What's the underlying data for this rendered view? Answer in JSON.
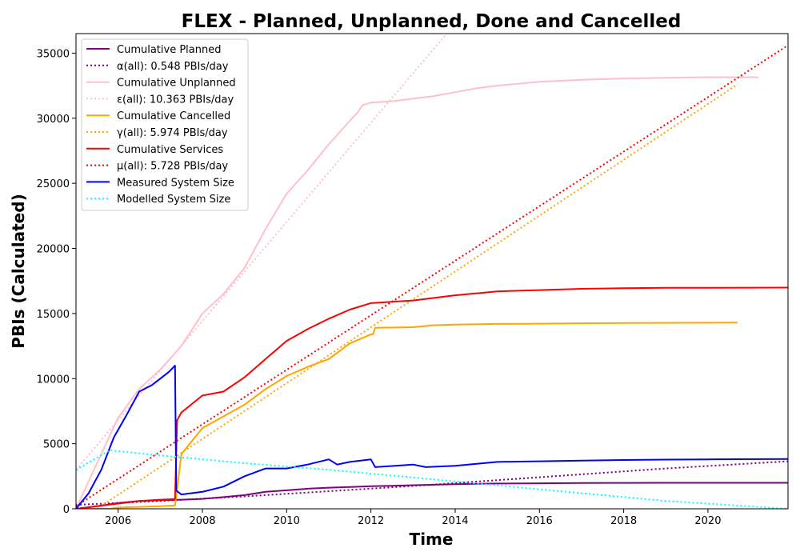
{
  "chart_data": {
    "type": "line",
    "title": "FLEX - Planned, Unplanned, Done  and Cancelled",
    "xlabel": "Time",
    "ylabel": "PBIs (Calculated)",
    "xlim": [
      2005.0,
      2021.9
    ],
    "ylim": [
      0,
      36500
    ],
    "x_ticks": [
      2006,
      2008,
      2010,
      2012,
      2014,
      2016,
      2018,
      2020
    ],
    "y_ticks": [
      0,
      5000,
      10000,
      15000,
      20000,
      25000,
      30000,
      35000
    ],
    "grid": false,
    "legend_position": "top-left",
    "series": [
      {
        "name": "Cumulative Planned",
        "color": "#800080",
        "style": "solid",
        "x": [
          2005.0,
          2005.5,
          2006.0,
          2006.5,
          2007.0,
          2007.5,
          2008.0,
          2008.5,
          2009.0,
          2009.5,
          2010.0,
          2010.5,
          2011.0,
          2011.5,
          2012.0,
          2012.5,
          2013.0,
          2013.5,
          2014.0,
          2014.5,
          2015.0,
          2016.0,
          2017.0,
          2018.0,
          2019.0,
          2020.0,
          2021.9
        ],
        "y": [
          0,
          200,
          450,
          600,
          650,
          700,
          760,
          900,
          1050,
          1300,
          1420,
          1540,
          1620,
          1680,
          1730,
          1770,
          1810,
          1850,
          1890,
          1920,
          1940,
          1960,
          1980,
          1990,
          1995,
          2000,
          2000
        ]
      },
      {
        "name": "α(all): 0.548 PBIs/day",
        "color": "#800080",
        "style": "dotted",
        "x": [
          2005.0,
          2007.0,
          2009.0,
          2011.0,
          2013.0,
          2015.0,
          2017.0,
          2019.0,
          2021.9
        ],
        "y": [
          300,
          600,
          950,
          1350,
          1750,
          2200,
          2650,
          3100,
          3650
        ]
      },
      {
        "name": "Cumulative Unplanned",
        "color": "#ffc0cb",
        "style": "solid",
        "x": [
          2005.0,
          2005.5,
          2006.0,
          2006.5,
          2007.0,
          2007.5,
          2007.8,
          2008.0,
          2008.5,
          2009.0,
          2009.5,
          2010.0,
          2010.5,
          2011.0,
          2011.5,
          2011.7,
          2011.8,
          2012.0,
          2012.5,
          2013.0,
          2013.5,
          2014.0,
          2014.5,
          2015.0,
          2016.0,
          2017.0,
          2018.0,
          2019.0,
          2020.0,
          2021.2
        ],
        "y": [
          0,
          3500,
          7000,
          9200,
          10700,
          12500,
          14000,
          15000,
          16500,
          18500,
          21500,
          24200,
          26000,
          28000,
          29800,
          30500,
          31000,
          31200,
          31300,
          31500,
          31700,
          32000,
          32300,
          32500,
          32800,
          32950,
          33050,
          33100,
          33150,
          33150
        ]
      },
      {
        "name": "ε(all): 10.363 PBIs/day",
        "color": "#ffc0cb",
        "style": "dotted",
        "x": [
          2005.0,
          2013.8
        ],
        "y": [
          3000,
          36500
        ]
      },
      {
        "name": "Cumulative Cancelled",
        "color": "#ffa500",
        "style": "solid",
        "x": [
          2005.0,
          2005.8,
          2006.0,
          2006.5,
          2007.0,
          2007.35,
          2007.4,
          2007.5,
          2008.0,
          2008.5,
          2009.0,
          2009.5,
          2010.0,
          2010.5,
          2011.0,
          2011.5,
          2012.0,
          2012.05,
          2012.1,
          2013.0,
          2013.5,
          2014.0,
          2015.0,
          2016.0,
          2017.0,
          2018.0,
          2020.7
        ],
        "y": [
          0,
          0,
          100,
          150,
          200,
          250,
          1500,
          4200,
          6200,
          7100,
          8000,
          9200,
          10200,
          10900,
          11500,
          12700,
          13400,
          13400,
          13900,
          13950,
          14100,
          14150,
          14200,
          14220,
          14250,
          14270,
          14300
        ]
      },
      {
        "name": "γ(all): 5.974 PBIs/day",
        "color": "#ffa500",
        "style": "dotted",
        "x": [
          2005.5,
          2020.7
        ],
        "y": [
          0,
          32600
        ]
      },
      {
        "name": "Cumulative Services",
        "color": "#ff0000",
        "style": "solid",
        "x": [
          2005.0,
          2005.5,
          2006.0,
          2006.5,
          2007.0,
          2007.35,
          2007.4,
          2007.5,
          2008.0,
          2008.5,
          2009.0,
          2009.5,
          2010.0,
          2010.5,
          2011.0,
          2011.5,
          2012.0,
          2012.5,
          2013.0,
          2013.5,
          2014.0,
          2015.0,
          2016.0,
          2017.0,
          2018.0,
          2019.0,
          2020.0,
          2021.9
        ],
        "y": [
          0,
          200,
          400,
          600,
          700,
          750,
          6800,
          7400,
          8700,
          9000,
          10100,
          11500,
          12900,
          13800,
          14600,
          15300,
          15800,
          15900,
          16000,
          16200,
          16400,
          16700,
          16800,
          16900,
          16950,
          16970,
          16980,
          16990
        ]
      },
      {
        "name": "μ(all): 5.728 PBIs/day",
        "color": "#ff0000",
        "style": "dotted",
        "x": [
          2005.0,
          2021.9
        ],
        "y": [
          200,
          35600
        ]
      },
      {
        "name": "Measured System Size",
        "color": "#0000ff",
        "style": "solid",
        "x": [
          2005.0,
          2005.3,
          2005.6,
          2005.9,
          2006.2,
          2006.5,
          2006.8,
          2007.0,
          2007.2,
          2007.35,
          2007.38,
          2007.5,
          2008.0,
          2008.5,
          2009.0,
          2009.5,
          2010.0,
          2010.5,
          2011.0,
          2011.2,
          2011.5,
          2012.0,
          2012.1,
          2013.0,
          2013.3,
          2014.0,
          2015.0,
          2016.0,
          2017.0,
          2018.0,
          2019.0,
          2020.0,
          2021.9
        ],
        "y": [
          0,
          1200,
          3000,
          5500,
          7200,
          9000,
          9500,
          10000,
          10500,
          11000,
          1400,
          1100,
          1300,
          1700,
          2500,
          3100,
          3100,
          3400,
          3800,
          3400,
          3600,
          3800,
          3200,
          3400,
          3200,
          3300,
          3600,
          3650,
          3700,
          3750,
          3780,
          3800,
          3820
        ]
      },
      {
        "name": "Modelled System Size",
        "color": "#00ffff",
        "style": "dotted",
        "x": [
          2005.0,
          2005.8,
          2007.0,
          2009.0,
          2011.0,
          2013.0,
          2015.0,
          2017.0,
          2019.0,
          2021.9
        ],
        "y": [
          3000,
          4500,
          4100,
          3500,
          3000,
          2400,
          1800,
          1200,
          600,
          0
        ]
      }
    ]
  }
}
